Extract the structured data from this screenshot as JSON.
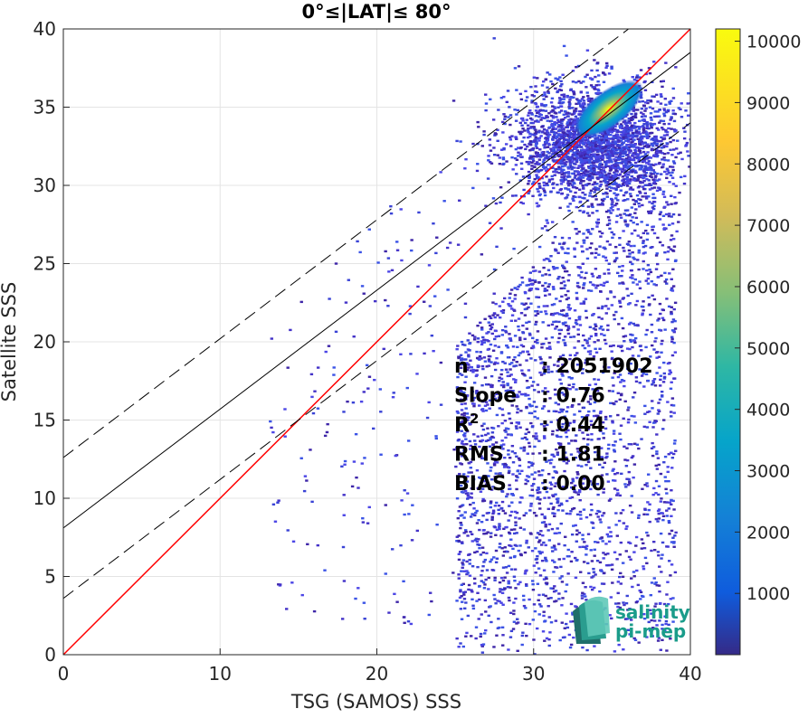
{
  "chart_data": {
    "type": "heatmap",
    "title": "0°≤|LAT|≤ 80°",
    "xlabel": "TSG (SAMOS) SSS",
    "ylabel": "Satellite SSS",
    "xlim": [
      0,
      40
    ],
    "ylim": [
      0,
      40
    ],
    "xticks": [
      "0",
      "10",
      "20",
      "30",
      "40"
    ],
    "yticks": [
      "0",
      "5",
      "10",
      "15",
      "20",
      "25",
      "30",
      "35",
      "40"
    ],
    "grid": true,
    "colorbar": {
      "range": [
        1,
        10200
      ],
      "ticks": [
        "1000",
        "2000",
        "3000",
        "4000",
        "5000",
        "6000",
        "7000",
        "8000",
        "9000",
        "10000"
      ],
      "colormap": "parula"
    },
    "density_peak": {
      "x": 34.8,
      "y": 34.9
    },
    "lines": [
      {
        "role": "one-to-one",
        "style": "solid",
        "color": "#ff0000",
        "slope": 1.0,
        "intercept": 0.0
      },
      {
        "role": "regression-fit",
        "style": "solid",
        "color": "#000000",
        "slope": 0.76,
        "intercept": 8.1
      },
      {
        "role": "fit-upper",
        "style": "dashed",
        "color": "#000000",
        "slope": 0.76,
        "intercept": 12.6
      },
      {
        "role": "fit-lower",
        "style": "dashed",
        "color": "#000000",
        "slope": 0.76,
        "intercept": 3.6
      }
    ],
    "stats": [
      {
        "label": "n",
        "value": ": 2051902"
      },
      {
        "label": "Slope",
        "value": ": 0.76"
      },
      {
        "label": "R",
        "sup": "2",
        "value": ": 0.44"
      },
      {
        "label": "RMS",
        "value": ": 1.81"
      },
      {
        "label": "BIAS",
        "value": ": 0.00"
      }
    ]
  },
  "logo": {
    "line1": "salinity",
    "line2": "pi-mep"
  }
}
